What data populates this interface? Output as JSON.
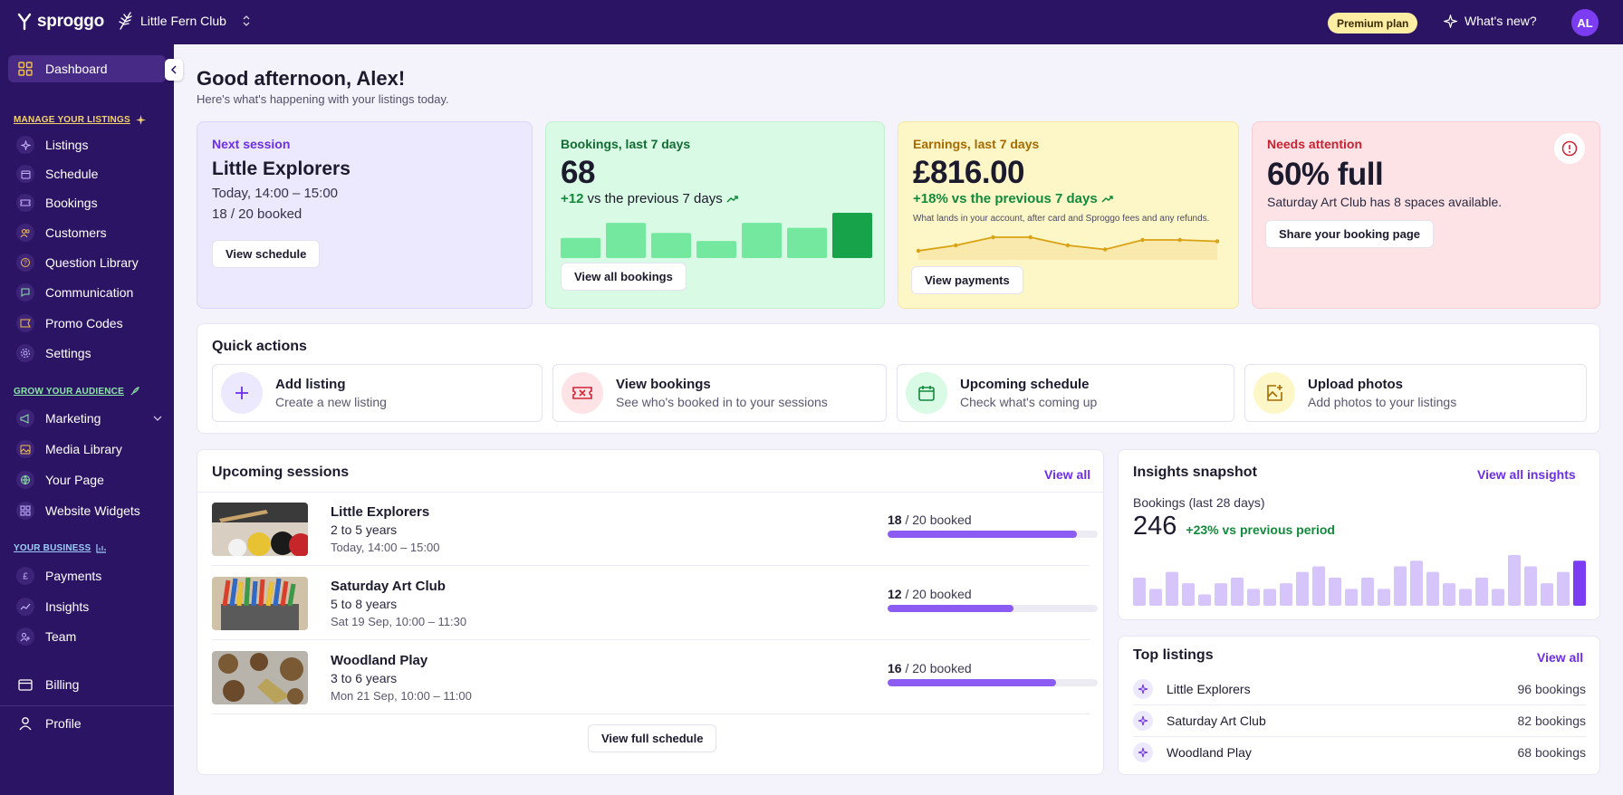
{
  "brand": {
    "name": "sproggo",
    "org_name": "Little Fern Club"
  },
  "header": {
    "plan": "Premium plan",
    "whats_new": "What's new?",
    "avatar_initials": "AL"
  },
  "sidebar": {
    "dashboard": "Dashboard",
    "section_manage": "MANAGE YOUR LISTINGS",
    "manage_items": [
      "Listings",
      "Schedule",
      "Bookings",
      "Customers",
      "Question Library",
      "Communication",
      "Promo Codes",
      "Settings"
    ],
    "section_grow": "GROW YOUR AUDIENCE",
    "grow_items": [
      "Marketing",
      "Media Library",
      "Your Page",
      "Website Widgets"
    ],
    "section_business": "YOUR BUSINESS",
    "business_items": [
      "Payments",
      "Insights",
      "Team"
    ],
    "billing": "Billing",
    "profile": "Profile"
  },
  "greeting": {
    "title": "Good afternoon, Alex!",
    "subtitle": "Here's what's happening with your listings today."
  },
  "cards": {
    "next_session": {
      "label": "Next session",
      "title": "Little Explorers",
      "time": "Today, 14:00 – 15:00",
      "booked": "18 / 20 booked",
      "button": "View schedule"
    },
    "bookings": {
      "label": "Bookings, last 7 days",
      "value": "68",
      "delta": "+12",
      "compare": "vs the previous 7 days",
      "button": "View all bookings",
      "bar_values": [
        20,
        35,
        25,
        17,
        35,
        30,
        45
      ]
    },
    "earnings": {
      "label": "Earnings, last 7 days",
      "value": "£816.00",
      "delta": "+18%",
      "compare": "vs the previous 7 days",
      "note": "What lands in your account, after card and Sproggo fees and any refunds.",
      "button": "View payments",
      "line_values": [
        4,
        8,
        14,
        14,
        8,
        5,
        12,
        12,
        11
      ]
    },
    "attention": {
      "label": "Needs attention",
      "value": "60% full",
      "message": "Saturday Art Club has 8 spaces available.",
      "button": "Share your booking page"
    }
  },
  "quick_actions": {
    "title": "Quick actions",
    "items": [
      {
        "title": "Add listing",
        "subtitle": "Create a new listing"
      },
      {
        "title": "View bookings",
        "subtitle": "See who's booked in to your sessions"
      },
      {
        "title": "Upcoming schedule",
        "subtitle": "Check what's coming up"
      },
      {
        "title": "Upload photos",
        "subtitle": "Add photos to your listings"
      }
    ]
  },
  "upcoming": {
    "title": "Upcoming sessions",
    "view_all": "View all",
    "full_schedule": "View full schedule",
    "sessions": [
      {
        "name": "Little Explorers",
        "ages": "2 to 5 years",
        "time": "Today, 14:00 – 15:00",
        "booked": "18",
        "capacity": "/ 20 booked",
        "fill": 0.9
      },
      {
        "name": "Saturday Art Club",
        "ages": "5 to 8 years",
        "time": "Sat 19 Sep, 10:00 – 11:30",
        "booked": "12",
        "capacity": "/ 20 booked",
        "fill": 0.6
      },
      {
        "name": "Woodland Play",
        "ages": "3 to 6 years",
        "time": "Mon 21 Sep, 10:00 – 11:00",
        "booked": "16",
        "capacity": "/ 20 booked",
        "fill": 0.8
      }
    ]
  },
  "insights": {
    "title": "Insights snapshot",
    "view_all": "View all insights",
    "metric_label": "Bookings (last 28 days)",
    "value": "246",
    "delta": "+23% vs previous period",
    "bar_values": [
      5,
      3,
      6,
      4,
      2,
      4,
      5,
      3,
      3,
      4,
      6,
      7,
      5,
      3,
      5,
      3,
      7,
      8,
      6,
      4,
      3,
      5,
      3,
      9,
      7,
      4,
      6,
      8
    ]
  },
  "top_listings": {
    "title": "Top listings",
    "view_all": "View all",
    "items": [
      {
        "name": "Little Explorers",
        "count": "96 bookings"
      },
      {
        "name": "Saturday Art Club",
        "count": "82 bookings"
      },
      {
        "name": "Woodland Play",
        "count": "68 bookings"
      }
    ]
  }
}
